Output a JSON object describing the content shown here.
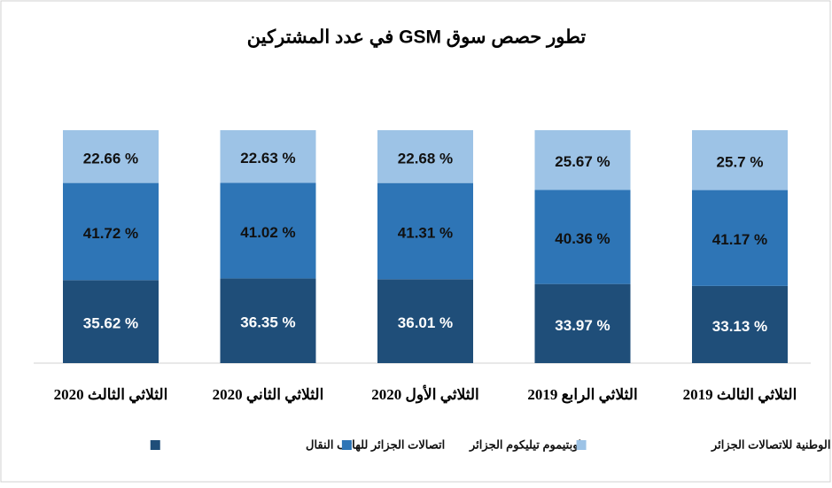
{
  "chart_data": {
    "type": "bar",
    "stacked": true,
    "title": "تطور حصص سوق GSM في عدد المشتركين",
    "categories": [
      "الثلاثي الثالث 2019",
      "الثلاثي الرابع 2019",
      "الثلاثي الأول 2020",
      "الثلاثي الثاني 2020",
      "الثلاثي الثالث 2020"
    ],
    "ylim": [
      0,
      100
    ],
    "series": [
      {
        "name": "اتصالات الجزائر للهاتف النقال",
        "color": "#1f4e79",
        "label_color": "#ffffff",
        "values": [
          33.13,
          33.97,
          36.01,
          36.35,
          35.62
        ],
        "value_labels": [
          "33.13 %",
          "33.97 %",
          "36.01 %",
          "36.35 %",
          "35.62 %"
        ]
      },
      {
        "name": "اوبتيموم تيليكوم الجزائر",
        "color": "#2e75b6",
        "label_color": "#111111",
        "values": [
          41.17,
          40.36,
          41.31,
          41.02,
          41.72
        ],
        "value_labels": [
          "41.17 %",
          "40.36 %",
          "41.31 %",
          "41.02 %",
          "41.72 %"
        ]
      },
      {
        "name": "الوطنية للاتصالات الجزائر",
        "color": "#9dc3e6",
        "label_color": "#111111",
        "values": [
          25.7,
          25.67,
          22.68,
          22.63,
          22.66
        ],
        "value_labels": [
          "25.7 %",
          "25.67 %",
          "22.68 %",
          "22.63 %",
          "22.66 %"
        ]
      }
    ]
  }
}
